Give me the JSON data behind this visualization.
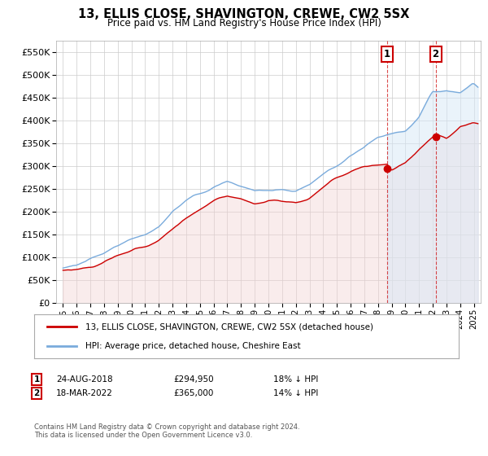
{
  "title": "13, ELLIS CLOSE, SHAVINGTON, CREWE, CW2 5SX",
  "subtitle": "Price paid vs. HM Land Registry's House Price Index (HPI)",
  "ytick_values": [
    0,
    50000,
    100000,
    150000,
    200000,
    250000,
    300000,
    350000,
    400000,
    450000,
    500000,
    550000
  ],
  "ylim": [
    0,
    575000
  ],
  "xlim_start": 1994.5,
  "xlim_end": 2025.5,
  "legend_entries": [
    "13, ELLIS CLOSE, SHAVINGTON, CREWE, CW2 5SX (detached house)",
    "HPI: Average price, detached house, Cheshire East"
  ],
  "legend_colors": [
    "#cc0000",
    "#7aabdc"
  ],
  "transaction1": {
    "label": "1",
    "date": "24-AUG-2018",
    "price": "£294,950",
    "note": "18% ↓ HPI",
    "year": 2018.65,
    "value": 294950
  },
  "transaction2": {
    "label": "2",
    "date": "18-MAR-2022",
    "price": "£365,000",
    "note": "14% ↓ HPI",
    "year": 2022.21,
    "value": 365000
  },
  "footer": "Contains HM Land Registry data © Crown copyright and database right 2024.\nThis data is licensed under the Open Government Licence v3.0.",
  "background_color": "#ffffff",
  "plot_bg_color": "#ffffff",
  "grid_color": "#cccccc",
  "hpi_line_color": "#7aabdc",
  "hpi_fill_color": "#d6e8f7",
  "price_line_color": "#cc0000",
  "price_fill_color": "#f2d0d0"
}
